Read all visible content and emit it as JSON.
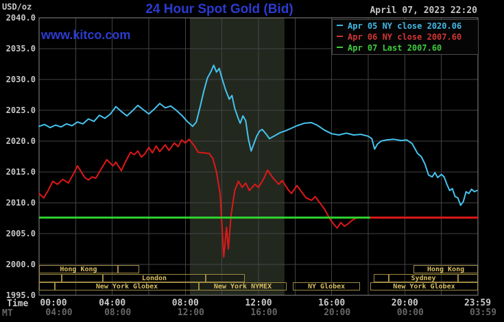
{
  "header": {
    "title": "24 Hour Spot Gold (Bid)",
    "date": "April 07, 2023 22:20",
    "logo": "www.kitco.com"
  },
  "legend": {
    "entries": [
      {
        "series": "apr05",
        "text": "Apr 05 NY close 2020.06",
        "color": "#41b9e6"
      },
      {
        "series": "apr06",
        "text": "Apr 06 NY close 2007.60",
        "color": "#d33535"
      },
      {
        "series": "apr07",
        "text": "Apr 07 Last 2007.60",
        "color": "#3ecb3e"
      }
    ]
  },
  "axes": {
    "unit_label": "USD/oz",
    "time_row_label": "Time",
    "mt_row_label": "MT",
    "y_tick_labels": [
      "2040.0",
      "2035.0",
      "2030.0",
      "2025.0",
      "2020.0",
      "2015.0",
      "2010.0",
      "2005.0",
      "2000.0",
      "1995.0"
    ],
    "time_tick_hours": [
      0,
      4,
      8,
      12,
      16,
      20,
      23.983
    ],
    "time_ticks_top": [
      "00:00",
      "04:00",
      "08:00",
      "12:00",
      "16:00",
      "20:00",
      "23:59"
    ],
    "time_ticks_bottom": [
      "04:00",
      "08:00",
      "12:00",
      "16:00",
      "20:00",
      "00:00",
      "03:59"
    ]
  },
  "sessions": {
    "cells": [
      {
        "row": 0,
        "label": "Hong Kong",
        "t1": 0,
        "t2": 4.31
      },
      {
        "row": 0,
        "label": "",
        "t1": 4.31,
        "t2": 5.47
      },
      {
        "row": 0,
        "label": "Hong Kong",
        "t1": 20.48,
        "t2": 24
      },
      {
        "row": 1,
        "label": "",
        "t1": 0,
        "t2": 1.24
      },
      {
        "row": 1,
        "label": "",
        "t1": 1.24,
        "t2": 3.49
      },
      {
        "row": 1,
        "label": "London",
        "t1": 3.49,
        "t2": 9.11
      },
      {
        "row": 1,
        "label": "",
        "t1": 9.11,
        "t2": 11.25
      },
      {
        "row": 1,
        "label": "",
        "t1": 18.3,
        "t2": 19.13
      },
      {
        "row": 1,
        "label": "Sydney",
        "t1": 19.13,
        "t2": 22.91
      },
      {
        "row": 1,
        "label": "",
        "t1": 22.91,
        "t2": 24
      },
      {
        "row": 2,
        "label": "",
        "t1": 0,
        "t2": 0.86
      },
      {
        "row": 2,
        "label": "New York Globex",
        "t1": 0.86,
        "t2": 8.74
      },
      {
        "row": 2,
        "label": "New York NYMEX",
        "t1": 8.74,
        "t2": 13.54
      },
      {
        "row": 2,
        "label": "NY Globex",
        "t1": 13.88,
        "t2": 17.55
      },
      {
        "row": 2,
        "label": "New York Globex",
        "t1": 18.11,
        "t2": 24
      }
    ]
  },
  "colors": {
    "background": "#000000",
    "grid": "#434343",
    "plot_border": "#8a8a8a",
    "nymex_band": "#23281f",
    "apr05_line": "#45c4f0",
    "apr06_line": "#e01818",
    "apr07_line": "#2fd42f",
    "session_gold": "#d8be62",
    "title_blue": "#2c3bd1"
  },
  "chart_data": {
    "type": "line",
    "title": "24 Hour Spot Gold (Bid)",
    "ylabel": "USD/oz",
    "ylim": [
      1995,
      2040
    ],
    "y_step": 5,
    "x_hours": [
      0,
      24
    ],
    "x_grid_step_hours": 2,
    "nymex_session_band": {
      "t1": 8.25,
      "t2": 13.42
    },
    "series": [
      {
        "name": "Apr 05 (2020.06 NY close)",
        "color_key": "apr05_line",
        "points": [
          [
            0,
            2022.4
          ],
          [
            0.3,
            2022.7
          ],
          [
            0.6,
            2022.2
          ],
          [
            0.9,
            2022.6
          ],
          [
            1.2,
            2022.3
          ],
          [
            1.5,
            2022.8
          ],
          [
            1.8,
            2022.5
          ],
          [
            2.1,
            2023.1
          ],
          [
            2.4,
            2022.8
          ],
          [
            2.7,
            2023.6
          ],
          [
            3.0,
            2023.2
          ],
          [
            3.3,
            2024.2
          ],
          [
            3.6,
            2023.7
          ],
          [
            3.9,
            2024.4
          ],
          [
            4.2,
            2025.6
          ],
          [
            4.5,
            2024.8
          ],
          [
            4.8,
            2024.1
          ],
          [
            5.1,
            2024.9
          ],
          [
            5.4,
            2025.8
          ],
          [
            5.7,
            2025.1
          ],
          [
            6.0,
            2024.4
          ],
          [
            6.3,
            2025.2
          ],
          [
            6.6,
            2026.1
          ],
          [
            6.9,
            2025.4
          ],
          [
            7.2,
            2025.7
          ],
          [
            7.5,
            2025.0
          ],
          [
            7.8,
            2024.2
          ],
          [
            8.1,
            2023.2
          ],
          [
            8.4,
            2022.4
          ],
          [
            8.6,
            2023.1
          ],
          [
            8.8,
            2025.5
          ],
          [
            9.0,
            2028.0
          ],
          [
            9.2,
            2030.2
          ],
          [
            9.4,
            2031.3
          ],
          [
            9.55,
            2032.3
          ],
          [
            9.7,
            2031.2
          ],
          [
            9.85,
            2031.8
          ],
          [
            10.0,
            2030.2
          ],
          [
            10.2,
            2028.3
          ],
          [
            10.4,
            2026.8
          ],
          [
            10.55,
            2027.4
          ],
          [
            10.7,
            2025.3
          ],
          [
            10.9,
            2023.6
          ],
          [
            11.0,
            2022.9
          ],
          [
            11.15,
            2024.1
          ],
          [
            11.3,
            2023.3
          ],
          [
            11.45,
            2020.3
          ],
          [
            11.6,
            2018.4
          ],
          [
            11.75,
            2019.6
          ],
          [
            11.9,
            2020.8
          ],
          [
            12.05,
            2021.6
          ],
          [
            12.2,
            2021.9
          ],
          [
            12.4,
            2021.2
          ],
          [
            12.6,
            2020.4
          ],
          [
            12.9,
            2020.9
          ],
          [
            13.2,
            2021.4
          ],
          [
            13.5,
            2021.7
          ],
          [
            13.8,
            2022.1
          ],
          [
            14.1,
            2022.5
          ],
          [
            14.5,
            2022.9
          ],
          [
            14.9,
            2023.0
          ],
          [
            15.2,
            2022.6
          ],
          [
            15.6,
            2021.8
          ],
          [
            16.0,
            2021.2
          ],
          [
            16.4,
            2021.0
          ],
          [
            16.8,
            2021.3
          ],
          [
            17.2,
            2021.0
          ],
          [
            17.6,
            2021.1
          ],
          [
            18.0,
            2020.8
          ],
          [
            18.2,
            2020.4
          ],
          [
            18.35,
            2018.7
          ],
          [
            18.5,
            2019.5
          ],
          [
            18.7,
            2020.0
          ],
          [
            19.0,
            2020.2
          ],
          [
            19.4,
            2020.3
          ],
          [
            19.8,
            2020.1
          ],
          [
            20.1,
            2020.2
          ],
          [
            20.4,
            2019.6
          ],
          [
            20.7,
            2018.0
          ],
          [
            20.9,
            2017.5
          ],
          [
            21.1,
            2016.3
          ],
          [
            21.3,
            2014.5
          ],
          [
            21.5,
            2014.2
          ],
          [
            21.65,
            2014.9
          ],
          [
            21.8,
            2014.1
          ],
          [
            22.0,
            2014.6
          ],
          [
            22.15,
            2014.2
          ],
          [
            22.3,
            2013.0
          ],
          [
            22.45,
            2012.0
          ],
          [
            22.6,
            2012.3
          ],
          [
            22.75,
            2011.0
          ],
          [
            22.9,
            2010.8
          ],
          [
            23.05,
            2009.6
          ],
          [
            23.2,
            2010.2
          ],
          [
            23.35,
            2011.8
          ],
          [
            23.5,
            2011.5
          ],
          [
            23.65,
            2012.2
          ],
          [
            23.8,
            2011.8
          ],
          [
            23.95,
            2012.0
          ]
        ]
      },
      {
        "name": "Apr 06 (2007.60 NY close)",
        "color_key": "apr06_line",
        "points": [
          [
            0,
            2011.5
          ],
          [
            0.25,
            2010.8
          ],
          [
            0.5,
            2012.0
          ],
          [
            0.75,
            2013.5
          ],
          [
            1.0,
            2013.0
          ],
          [
            1.3,
            2013.8
          ],
          [
            1.6,
            2013.2
          ],
          [
            1.9,
            2014.8
          ],
          [
            2.1,
            2016.0
          ],
          [
            2.35,
            2014.8
          ],
          [
            2.5,
            2014.1
          ],
          [
            2.7,
            2013.7
          ],
          [
            2.9,
            2014.2
          ],
          [
            3.1,
            2014.0
          ],
          [
            3.4,
            2015.5
          ],
          [
            3.7,
            2017.0
          ],
          [
            3.9,
            2016.4
          ],
          [
            4.05,
            2016.0
          ],
          [
            4.2,
            2016.6
          ],
          [
            4.5,
            2015.2
          ],
          [
            4.7,
            2016.5
          ],
          [
            5.0,
            2018.2
          ],
          [
            5.2,
            2017.8
          ],
          [
            5.4,
            2018.4
          ],
          [
            5.6,
            2017.4
          ],
          [
            5.8,
            2018.0
          ],
          [
            6.0,
            2019.0
          ],
          [
            6.2,
            2018.1
          ],
          [
            6.4,
            2019.2
          ],
          [
            6.6,
            2018.3
          ],
          [
            6.9,
            2019.4
          ],
          [
            7.1,
            2018.5
          ],
          [
            7.4,
            2019.7
          ],
          [
            7.6,
            2019.1
          ],
          [
            7.8,
            2020.2
          ],
          [
            8.0,
            2019.7
          ],
          [
            8.2,
            2020.3
          ],
          [
            8.5,
            2019.2
          ],
          [
            8.7,
            2018.2
          ],
          [
            9.0,
            2018.1
          ],
          [
            9.3,
            2018.0
          ],
          [
            9.5,
            2017.2
          ],
          [
            9.7,
            2015.0
          ],
          [
            9.9,
            2011.5
          ],
          [
            10.0,
            2006.3
          ],
          [
            10.1,
            2001.2
          ],
          [
            10.25,
            2006.0
          ],
          [
            10.35,
            2002.5
          ],
          [
            10.5,
            2008.0
          ],
          [
            10.7,
            2012.0
          ],
          [
            10.9,
            2013.5
          ],
          [
            11.1,
            2012.5
          ],
          [
            11.3,
            2013.2
          ],
          [
            11.5,
            2012.0
          ],
          [
            11.8,
            2013.0
          ],
          [
            12.0,
            2012.5
          ],
          [
            12.3,
            2014.0
          ],
          [
            12.5,
            2015.3
          ],
          [
            12.8,
            2014.0
          ],
          [
            13.1,
            2013.0
          ],
          [
            13.3,
            2013.6
          ],
          [
            13.6,
            2012.2
          ],
          [
            13.8,
            2011.5
          ],
          [
            14.1,
            2012.8
          ],
          [
            14.3,
            2012.0
          ],
          [
            14.6,
            2010.8
          ],
          [
            14.9,
            2010.4
          ],
          [
            15.1,
            2011.0
          ],
          [
            15.3,
            2010.2
          ],
          [
            15.6,
            2009.0
          ],
          [
            15.9,
            2007.4
          ],
          [
            16.1,
            2006.6
          ],
          [
            16.3,
            2005.9
          ],
          [
            16.5,
            2006.8
          ],
          [
            16.7,
            2006.2
          ],
          [
            16.9,
            2006.6
          ],
          [
            17.1,
            2007.1
          ],
          [
            17.3,
            2007.5
          ],
          [
            17.6,
            2007.6
          ],
          [
            18.1,
            2007.6
          ]
        ]
      }
    ],
    "reference_lines": [
      {
        "name": "Apr 07 Last",
        "value": 2007.6,
        "t1": 0,
        "t2": 18.1,
        "color_key": "apr07_line",
        "width": 3
      },
      {
        "name": "Apr 06 close extension",
        "value": 2007.6,
        "t1": 18.1,
        "t2": 24,
        "color_key": "apr06_line",
        "width": 3
      }
    ]
  }
}
